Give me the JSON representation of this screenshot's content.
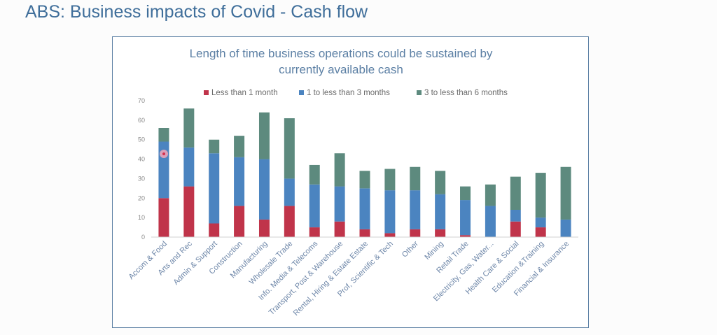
{
  "page": {
    "title": "ABS: Business impacts of Covid - Cash flow"
  },
  "chart_data": {
    "type": "bar",
    "stacked": true,
    "title": [
      "Length of time business operations could be sustained by",
      "currently available cash"
    ],
    "xlabel": "",
    "ylabel": "",
    "ylim": [
      0,
      70
    ],
    "yticks": [
      0,
      10,
      20,
      30,
      40,
      50,
      60,
      70
    ],
    "grid": false,
    "legend_position": "top",
    "categories": [
      "Accom & Food",
      "Arts and Rec",
      "Admin & Support",
      "Construction",
      "Manufacturing",
      "Wholesale Trade",
      "Info. Media & Telecoms",
      "Transport, Post & Warehouse",
      "Rental, Hiring & Estate Estate",
      "Prof, Scientific & Tech",
      "Other",
      "Mining",
      "Retail Trade",
      "Electricity, Gas, Water...",
      "Health Care & Social",
      "Education &Training",
      "Financial & Insurance"
    ],
    "series": [
      {
        "name": "Less than 1 month",
        "color": "#c0344a",
        "values": [
          20,
          26,
          7,
          16,
          9,
          16,
          5,
          8,
          4,
          2,
          4,
          4,
          1,
          0,
          8,
          5,
          0
        ]
      },
      {
        "name": "1 to less than 3 months",
        "color": "#4b84c0",
        "values": [
          29,
          20,
          36,
          25,
          31,
          14,
          22,
          18,
          21,
          22,
          20,
          18,
          18,
          16,
          6,
          5,
          9
        ]
      },
      {
        "name": "3 to less than 6 months",
        "color": "#5d8a7e",
        "values": [
          7,
          20,
          7,
          11,
          24,
          31,
          10,
          17,
          9,
          11,
          12,
          12,
          7,
          11,
          17,
          23,
          27
        ]
      }
    ]
  }
}
